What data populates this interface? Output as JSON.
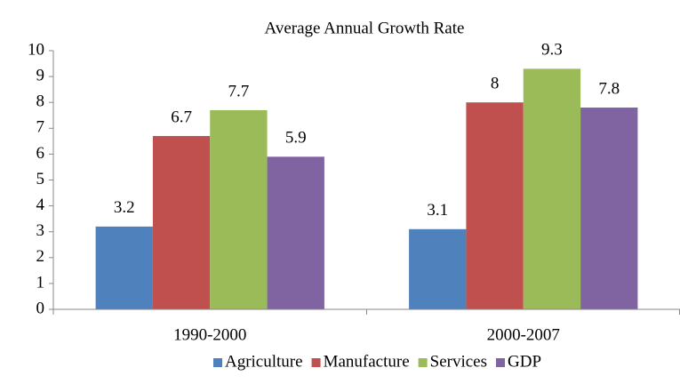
{
  "chart_data": {
    "type": "bar",
    "title": "Average Annual Growth Rate",
    "categories": [
      "1990-2000",
      "2000-2007"
    ],
    "series": [
      {
        "name": "Agriculture",
        "color": "#4f81bd",
        "values": [
          3.2,
          3.1
        ]
      },
      {
        "name": "Manufacture",
        "color": "#c0504d",
        "values": [
          6.7,
          8
        ]
      },
      {
        "name": "Services",
        "color": "#9bbb59",
        "values": [
          7.7,
          9.3
        ]
      },
      {
        "name": "GDP",
        "color": "#8064a2",
        "values": [
          5.9,
          7.8
        ]
      }
    ],
    "ylim": [
      0,
      10
    ],
    "yticks": [
      0,
      1,
      2,
      3,
      4,
      5,
      6,
      7,
      8,
      9,
      10
    ],
    "grid": false,
    "legend": "bottom"
  }
}
